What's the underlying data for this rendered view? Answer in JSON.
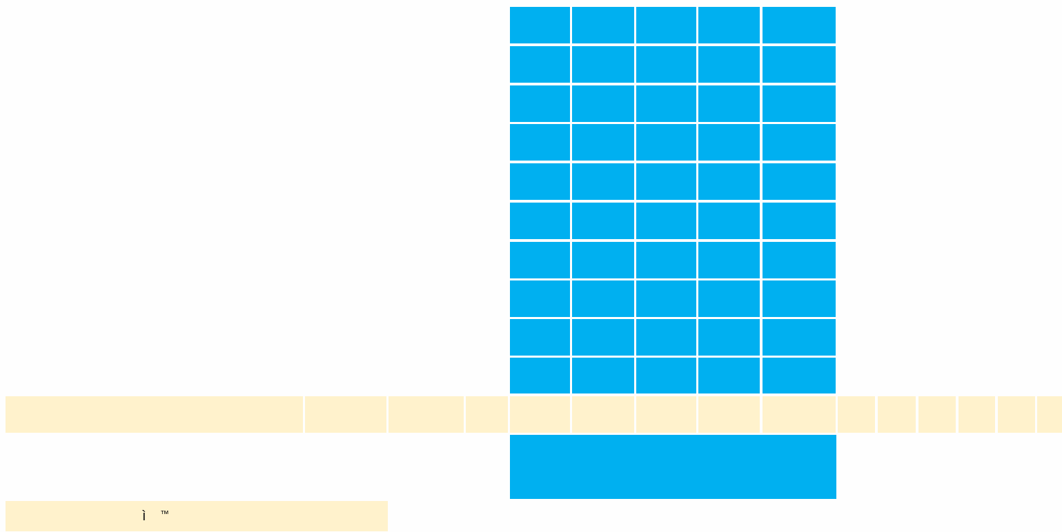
{
  "colors": {
    "highlight_blue": "#00b0f0",
    "band_cream": "#fff2cc",
    "background": "#fefefe"
  },
  "grid": {
    "blue_block_rows": 10,
    "blue_block_columns": 5,
    "band_columns": 16
  },
  "footer_cell": {
    "text": "ì",
    "mark": "™"
  }
}
